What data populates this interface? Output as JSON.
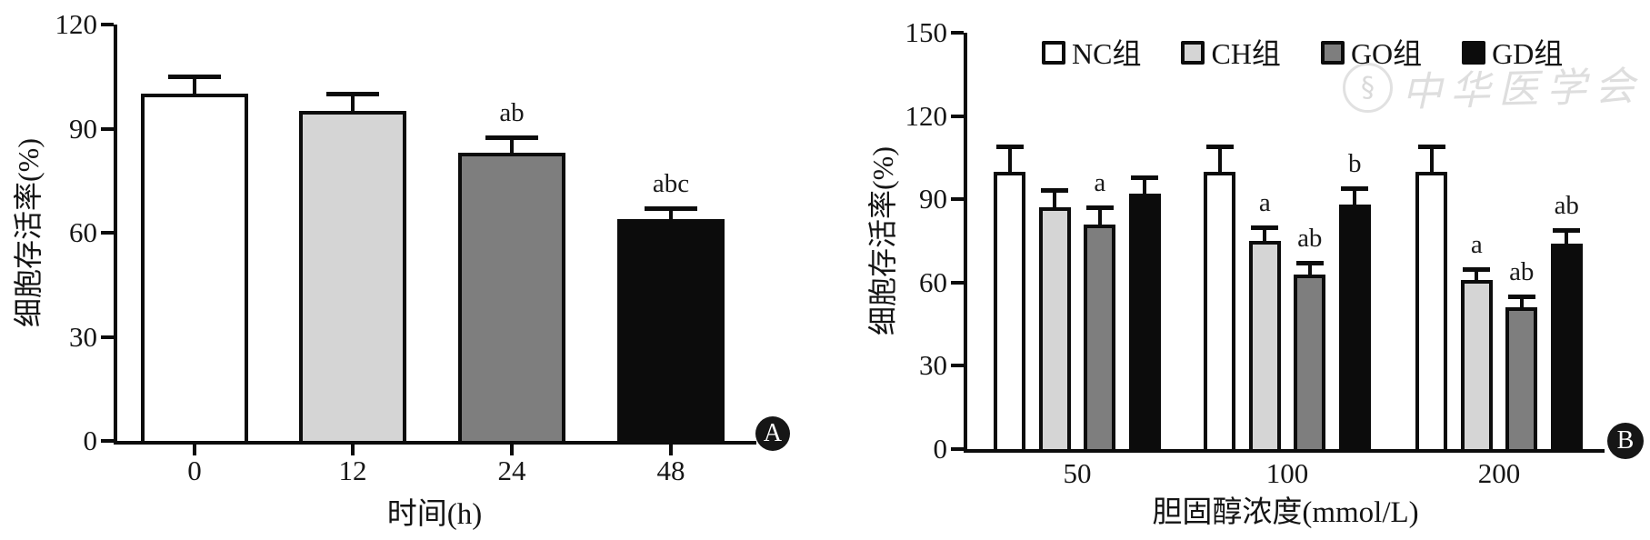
{
  "figure": {
    "background": "#ffffff",
    "text_color": "#141414",
    "axis_color": "#0c0c0c"
  },
  "watermark": {
    "icon": "medical-association-seal",
    "text": "中华医学会"
  },
  "panels": [
    {
      "badge": "A",
      "chart_data": {
        "type": "bar",
        "title": "",
        "xlabel": "时间(h)",
        "ylabel": "细胞存活率(%)",
        "ylim": [
          0,
          120
        ],
        "yticks": [
          "0",
          "30",
          "60",
          "90",
          "120"
        ],
        "categories": [
          "0",
          "12",
          "24",
          "48"
        ],
        "values": [
          100,
          95,
          83,
          64
        ],
        "errors": [
          5,
          5,
          4.5,
          3
        ],
        "error_bars": "upper",
        "sig_labels": [
          "",
          "",
          "ab",
          "abc"
        ],
        "bar_colors": [
          "#ffffff",
          "#d5d5d5",
          "#7e7e7e",
          "#0c0c0c"
        ],
        "grid": false,
        "legend": false
      }
    },
    {
      "badge": "B",
      "chart_data": {
        "type": "bar",
        "grouped": true,
        "title": "",
        "xlabel": "胆固醇浓度(mmol/L)",
        "ylabel": "细胞存活率(%)",
        "ylim": [
          0,
          150
        ],
        "yticks": [
          "0",
          "30",
          "60",
          "90",
          "120",
          "150"
        ],
        "categories": [
          "50",
          "100",
          "200"
        ],
        "legend_position": "top",
        "grid": false,
        "error_bars": "upper",
        "series": [
          {
            "name": "NC组",
            "color": "#ffffff",
            "values": [
              100,
              100,
              100
            ],
            "errors": [
              9,
              9,
              9
            ],
            "sig": [
              "",
              "",
              ""
            ]
          },
          {
            "name": "CH组",
            "color": "#d5d5d5",
            "values": [
              87,
              75,
              61
            ],
            "errors": [
              6.5,
              5,
              4
            ],
            "sig": [
              "",
              "a",
              "a"
            ]
          },
          {
            "name": "GO组",
            "color": "#7e7e7e",
            "values": [
              81,
              63,
              51
            ],
            "errors": [
              6,
              4,
              4
            ],
            "sig": [
              "a",
              "ab",
              "ab"
            ]
          },
          {
            "name": "GD组",
            "color": "#0c0c0c",
            "values": [
              92,
              88,
              74
            ],
            "errors": [
              6,
              6,
              5
            ],
            "sig": [
              "",
              "b",
              "ab"
            ]
          }
        ]
      }
    }
  ]
}
